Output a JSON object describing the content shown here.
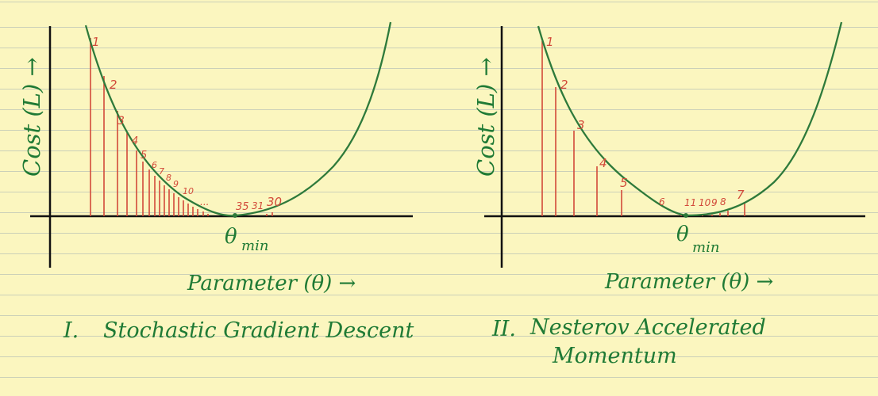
{
  "colors": {
    "paper": "#fbf6bf",
    "rule_line": "#cbd0b8",
    "axis": "#111111",
    "curve": "#2e7a3b",
    "steps": "#d24a3a",
    "handwriting": "#1f7a35"
  },
  "panels": [
    {
      "ylabel": "Cost (L) →",
      "xlabel": "Parameter (θ) →",
      "min_label": "θ",
      "min_subscript": "min",
      "title_numeral": "I.",
      "title": "Stochastic Gradient Descent",
      "title_line2": "",
      "step_labels": [
        "1",
        "2",
        "3",
        "4",
        "5",
        "6",
        "7",
        "8",
        "9",
        "10",
        "30",
        "31",
        "35"
      ],
      "ellipsis": "..."
    },
    {
      "ylabel": "Cost (L) →",
      "xlabel": "Parameter (θ) →",
      "min_label": "θ",
      "min_subscript": "min",
      "title_numeral": "II.",
      "title": "Nesterov Accelerated",
      "title_line2": "Momentum",
      "step_labels": [
        "1",
        "2",
        "3",
        "4",
        "5",
        "6",
        "7",
        "8",
        "9",
        "10",
        "11"
      ],
      "ellipsis": ""
    }
  ]
}
